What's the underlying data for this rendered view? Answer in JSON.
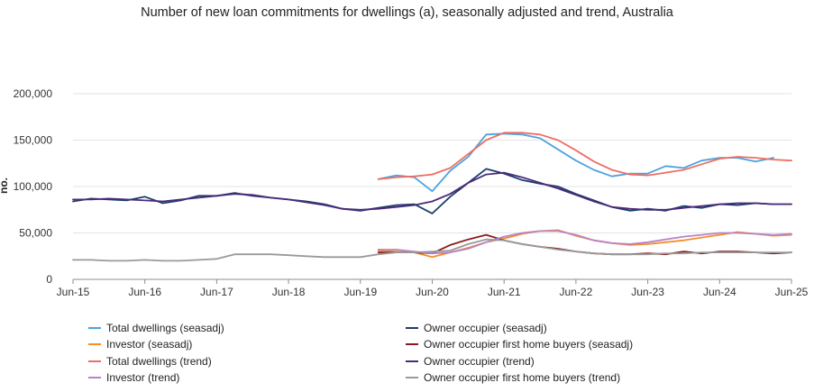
{
  "chart_data": {
    "type": "line",
    "title": "Number of new loan commitments for dwellings (a), seasonally adjusted and trend, Australia",
    "ylabel": "no.",
    "xlabel": "",
    "ylim": [
      0,
      200000
    ],
    "yticks": [
      0,
      50000,
      100000,
      150000,
      200000
    ],
    "ytick_labels": [
      "0",
      "50,000",
      "100,000",
      "150,000",
      "200,000"
    ],
    "xlim": [
      2015.5,
      2025.5
    ],
    "xticks": [
      2015.5,
      2016.5,
      2017.5,
      2018.5,
      2019.5,
      2020.5,
      2021.5,
      2022.5,
      2023.5,
      2024.5,
      2025.5
    ],
    "xtick_labels": [
      "Jun-15",
      "Jun-16",
      "Jun-17",
      "Jun-18",
      "Jun-19",
      "Jun-20",
      "Jun-21",
      "Jun-22",
      "Jun-23",
      "Jun-24",
      "Jun-25"
    ],
    "grid": true,
    "legend_position": "bottom",
    "series": [
      {
        "name": "Total dwellings (seasadj)",
        "color": "#4aa3df",
        "points": [
          [
            2019.75,
            108000
          ],
          [
            2020.0,
            112000
          ],
          [
            2020.25,
            110000
          ],
          [
            2020.5,
            95000
          ],
          [
            2020.75,
            117000
          ],
          [
            2021.0,
            132000
          ],
          [
            2021.25,
            156000
          ],
          [
            2021.5,
            157000
          ],
          [
            2021.75,
            156000
          ],
          [
            2022.0,
            152000
          ],
          [
            2022.25,
            140000
          ],
          [
            2022.5,
            128000
          ],
          [
            2022.75,
            118000
          ],
          [
            2023.0,
            111000
          ],
          [
            2023.25,
            114000
          ],
          [
            2023.5,
            114000
          ],
          [
            2023.75,
            122000
          ],
          [
            2024.0,
            120000
          ],
          [
            2024.25,
            128000
          ],
          [
            2024.5,
            131000
          ],
          [
            2024.75,
            131000
          ],
          [
            2025.0,
            127000
          ],
          [
            2025.25,
            131000
          ]
        ]
      },
      {
        "name": "Owner occupier (seasadj)",
        "color": "#1b3f6b",
        "points": [
          [
            2015.5,
            84000
          ],
          [
            2015.75,
            87000
          ],
          [
            2016.0,
            86000
          ],
          [
            2016.25,
            85000
          ],
          [
            2016.5,
            89000
          ],
          [
            2016.75,
            82000
          ],
          [
            2017.0,
            85000
          ],
          [
            2017.25,
            90000
          ],
          [
            2017.5,
            90000
          ],
          [
            2017.75,
            93000
          ],
          [
            2018.0,
            90000
          ],
          [
            2018.25,
            88000
          ],
          [
            2018.5,
            86000
          ],
          [
            2018.75,
            84000
          ],
          [
            2019.0,
            81000
          ],
          [
            2019.25,
            76000
          ],
          [
            2019.5,
            74000
          ],
          [
            2019.75,
            77000
          ],
          [
            2020.0,
            80000
          ],
          [
            2020.25,
            81000
          ],
          [
            2020.5,
            71000
          ],
          [
            2020.75,
            89000
          ],
          [
            2021.0,
            104000
          ],
          [
            2021.25,
            119000
          ],
          [
            2021.5,
            114000
          ],
          [
            2021.75,
            107000
          ],
          [
            2022.0,
            103000
          ],
          [
            2022.25,
            100000
          ],
          [
            2022.5,
            92000
          ],
          [
            2022.75,
            85000
          ],
          [
            2023.0,
            78000
          ],
          [
            2023.25,
            74000
          ],
          [
            2023.5,
            76000
          ],
          [
            2023.75,
            74000
          ],
          [
            2024.0,
            79000
          ],
          [
            2024.25,
            77000
          ],
          [
            2024.5,
            81000
          ],
          [
            2024.75,
            80000
          ],
          [
            2025.0,
            82000
          ],
          [
            2025.25,
            81000
          ],
          [
            2025.5,
            81000
          ]
        ]
      },
      {
        "name": "Investor (seasadj)",
        "color": "#f28e2b",
        "points": [
          [
            2019.75,
            31000
          ],
          [
            2020.0,
            30000
          ],
          [
            2020.25,
            29000
          ],
          [
            2020.5,
            24000
          ],
          [
            2020.75,
            29000
          ],
          [
            2021.0,
            34000
          ],
          [
            2021.25,
            40000
          ],
          [
            2021.5,
            44000
          ],
          [
            2021.75,
            49000
          ],
          [
            2022.0,
            52000
          ],
          [
            2022.25,
            53000
          ],
          [
            2022.5,
            47000
          ],
          [
            2022.75,
            42000
          ],
          [
            2023.0,
            39000
          ],
          [
            2023.25,
            37000
          ],
          [
            2023.5,
            38000
          ],
          [
            2023.75,
            40000
          ],
          [
            2024.0,
            42000
          ],
          [
            2024.25,
            45000
          ],
          [
            2024.5,
            48000
          ],
          [
            2024.75,
            51000
          ],
          [
            2025.0,
            49000
          ],
          [
            2025.25,
            47000
          ],
          [
            2025.5,
            48000
          ]
        ]
      },
      {
        "name": "Owner occupier first home buyers (seasadj)",
        "color": "#8b1a1a",
        "points": [
          [
            2019.75,
            29000
          ],
          [
            2020.0,
            29000
          ],
          [
            2020.25,
            29000
          ],
          [
            2020.5,
            28000
          ],
          [
            2020.75,
            37000
          ],
          [
            2021.0,
            43000
          ],
          [
            2021.25,
            48000
          ],
          [
            2021.5,
            42000
          ],
          [
            2021.75,
            38000
          ],
          [
            2022.0,
            35000
          ],
          [
            2022.25,
            33000
          ],
          [
            2022.5,
            30000
          ],
          [
            2022.75,
            28000
          ],
          [
            2023.0,
            27000
          ],
          [
            2023.25,
            27000
          ],
          [
            2023.5,
            28000
          ],
          [
            2023.75,
            27000
          ],
          [
            2024.0,
            30000
          ],
          [
            2024.25,
            28000
          ],
          [
            2024.5,
            30000
          ],
          [
            2024.75,
            30000
          ],
          [
            2025.0,
            29000
          ],
          [
            2025.25,
            28000
          ],
          [
            2025.5,
            29000
          ]
        ]
      },
      {
        "name": "Total dwellings (trend)",
        "color": "#ee6e63",
        "points": [
          [
            2019.75,
            108000
          ],
          [
            2020.0,
            110000
          ],
          [
            2020.25,
            111000
          ],
          [
            2020.5,
            113000
          ],
          [
            2020.75,
            120000
          ],
          [
            2021.0,
            135000
          ],
          [
            2021.25,
            150000
          ],
          [
            2021.5,
            158000
          ],
          [
            2021.75,
            158000
          ],
          [
            2022.0,
            156000
          ],
          [
            2022.25,
            150000
          ],
          [
            2022.5,
            139000
          ],
          [
            2022.75,
            127000
          ],
          [
            2023.0,
            118000
          ],
          [
            2023.25,
            113000
          ],
          [
            2023.5,
            112000
          ],
          [
            2023.75,
            115000
          ],
          [
            2024.0,
            118000
          ],
          [
            2024.25,
            124000
          ],
          [
            2024.5,
            130000
          ],
          [
            2024.75,
            132000
          ],
          [
            2025.0,
            131000
          ],
          [
            2025.25,
            129000
          ],
          [
            2025.5,
            128000
          ]
        ]
      },
      {
        "name": "Owner occupier (trend)",
        "color": "#4b2a7a",
        "points": [
          [
            2015.5,
            86000
          ],
          [
            2015.75,
            86000
          ],
          [
            2016.0,
            87000
          ],
          [
            2016.25,
            86000
          ],
          [
            2016.5,
            85000
          ],
          [
            2016.75,
            84000
          ],
          [
            2017.0,
            86000
          ],
          [
            2017.25,
            88000
          ],
          [
            2017.5,
            90000
          ],
          [
            2017.75,
            92000
          ],
          [
            2018.0,
            91000
          ],
          [
            2018.25,
            88000
          ],
          [
            2018.5,
            86000
          ],
          [
            2018.75,
            83000
          ],
          [
            2019.0,
            80000
          ],
          [
            2019.25,
            76000
          ],
          [
            2019.5,
            75000
          ],
          [
            2019.75,
            76000
          ],
          [
            2020.0,
            78000
          ],
          [
            2020.25,
            80000
          ],
          [
            2020.5,
            84000
          ],
          [
            2020.75,
            92000
          ],
          [
            2021.0,
            104000
          ],
          [
            2021.25,
            113000
          ],
          [
            2021.5,
            115000
          ],
          [
            2021.75,
            110000
          ],
          [
            2022.0,
            104000
          ],
          [
            2022.25,
            98000
          ],
          [
            2022.5,
            91000
          ],
          [
            2022.75,
            84000
          ],
          [
            2023.0,
            78000
          ],
          [
            2023.25,
            76000
          ],
          [
            2023.5,
            75000
          ],
          [
            2023.75,
            75000
          ],
          [
            2024.0,
            77000
          ],
          [
            2024.25,
            79000
          ],
          [
            2024.5,
            81000
          ],
          [
            2024.75,
            82000
          ],
          [
            2025.0,
            82000
          ],
          [
            2025.25,
            81000
          ],
          [
            2025.5,
            81000
          ]
        ]
      },
      {
        "name": "Investor (trend)",
        "color": "#b983c8",
        "points": [
          [
            2019.75,
            32000
          ],
          [
            2020.0,
            32000
          ],
          [
            2020.25,
            30000
          ],
          [
            2020.5,
            28000
          ],
          [
            2020.75,
            29000
          ],
          [
            2021.0,
            33000
          ],
          [
            2021.25,
            40000
          ],
          [
            2021.5,
            46000
          ],
          [
            2021.75,
            50000
          ],
          [
            2022.0,
            52000
          ],
          [
            2022.25,
            52000
          ],
          [
            2022.5,
            48000
          ],
          [
            2022.75,
            42000
          ],
          [
            2023.0,
            39000
          ],
          [
            2023.25,
            38000
          ],
          [
            2023.5,
            40000
          ],
          [
            2023.75,
            43000
          ],
          [
            2024.0,
            46000
          ],
          [
            2024.25,
            48000
          ],
          [
            2024.5,
            50000
          ],
          [
            2024.75,
            50000
          ],
          [
            2025.0,
            49000
          ],
          [
            2025.25,
            48000
          ],
          [
            2025.5,
            49000
          ]
        ]
      },
      {
        "name": "Owner occupier first home buyers (trend)",
        "color": "#9a9a9a",
        "points": [
          [
            2015.5,
            21000
          ],
          [
            2015.75,
            21000
          ],
          [
            2016.0,
            20000
          ],
          [
            2016.25,
            20000
          ],
          [
            2016.5,
            21000
          ],
          [
            2016.75,
            20000
          ],
          [
            2017.0,
            20000
          ],
          [
            2017.25,
            21000
          ],
          [
            2017.5,
            22000
          ],
          [
            2017.75,
            27000
          ],
          [
            2018.0,
            27000
          ],
          [
            2018.25,
            27000
          ],
          [
            2018.5,
            26000
          ],
          [
            2018.75,
            25000
          ],
          [
            2019.0,
            24000
          ],
          [
            2019.25,
            24000
          ],
          [
            2019.5,
            24000
          ],
          [
            2019.75,
            27000
          ],
          [
            2020.0,
            29000
          ],
          [
            2020.25,
            29000
          ],
          [
            2020.5,
            30000
          ],
          [
            2020.75,
            31000
          ],
          [
            2021.0,
            38000
          ],
          [
            2021.25,
            43000
          ],
          [
            2021.5,
            42000
          ],
          [
            2021.75,
            38000
          ],
          [
            2022.0,
            35000
          ],
          [
            2022.25,
            32000
          ],
          [
            2022.5,
            30000
          ],
          [
            2022.75,
            28000
          ],
          [
            2023.0,
            27000
          ],
          [
            2023.25,
            27000
          ],
          [
            2023.5,
            27000
          ],
          [
            2023.75,
            28000
          ],
          [
            2024.0,
            28000
          ],
          [
            2024.25,
            29000
          ],
          [
            2024.5,
            29000
          ],
          [
            2024.75,
            29000
          ],
          [
            2025.0,
            29000
          ],
          [
            2025.25,
            29000
          ],
          [
            2025.5,
            29000
          ]
        ]
      }
    ]
  }
}
